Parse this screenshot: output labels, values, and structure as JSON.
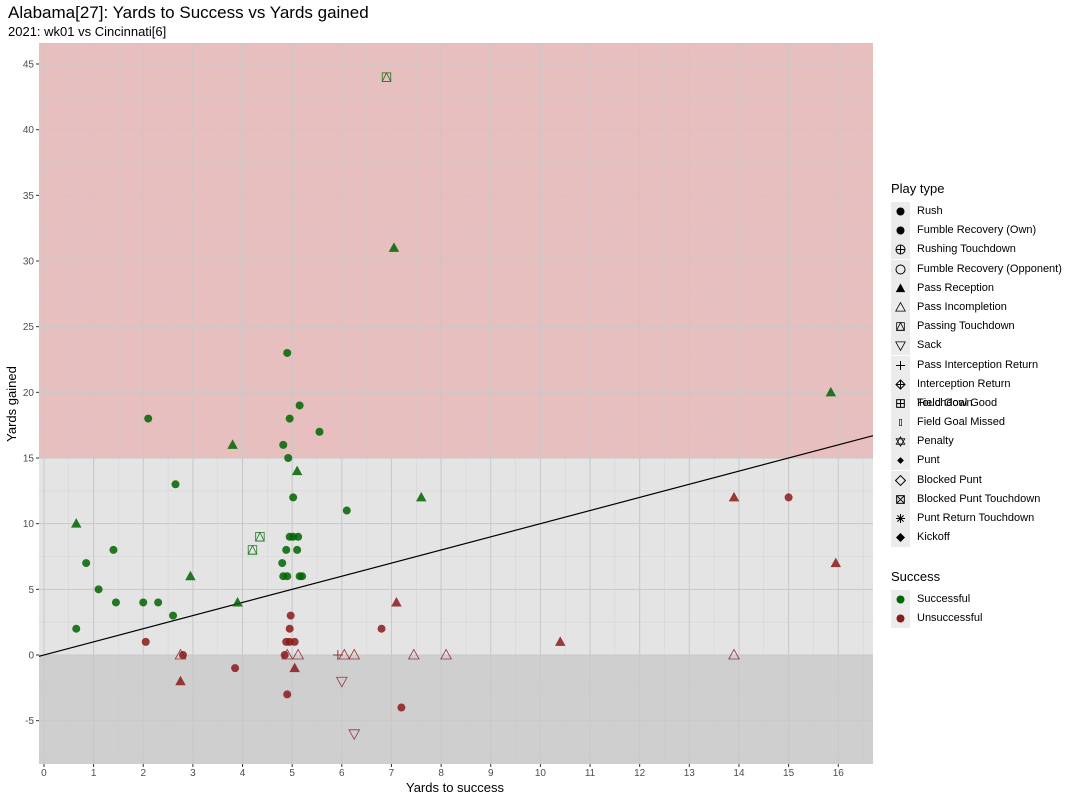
{
  "title": "Alabama[27]: Yards to Success vs Yards gained",
  "subtitle": "2021: wk01 vs Cincinnati[6]",
  "colors": {
    "successful": "#006400",
    "unsuccessful": "#8b1a1a",
    "band_top": "#e8bfbf",
    "band_mid": "#e4e4e4",
    "band_bottom": "#cfcfcf",
    "grid": "#c8c8c8"
  },
  "legend_play_type": {
    "title": "Play type",
    "items": [
      {
        "label": "Rush",
        "shape": "circle-filled"
      },
      {
        "label": "Fumble Recovery (Own)",
        "shape": "circle-filled"
      },
      {
        "label": "Rushing Touchdown",
        "shape": "circle-plus"
      },
      {
        "label": "Fumble Recovery (Opponent)",
        "shape": "circle-open"
      },
      {
        "label": "Pass Reception",
        "shape": "triangle-filled"
      },
      {
        "label": "Pass Incompletion",
        "shape": "triangle-open"
      },
      {
        "label": "Passing Touchdown",
        "shape": "square-triangle"
      },
      {
        "label": "Sack",
        "shape": "triangle-down-open"
      },
      {
        "label": "Pass Interception Return",
        "shape": "plus"
      },
      {
        "label": "Interception Return Touchdown",
        "shape": "diamond-plus"
      },
      {
        "label": "Field Goal Good",
        "shape": "square-plus"
      },
      {
        "label": "Field Goal Missed",
        "shape": "small-rect"
      },
      {
        "label": "Penalty",
        "shape": "star-of-david"
      },
      {
        "label": "Punt",
        "shape": "diamond-small-filled"
      },
      {
        "label": "Blocked Punt",
        "shape": "diamond-open"
      },
      {
        "label": "Blocked Punt Touchdown",
        "shape": "square-x"
      },
      {
        "label": "Punt Return Touchdown",
        "shape": "asterisk"
      },
      {
        "label": "Kickoff",
        "shape": "diamond-filled"
      }
    ]
  },
  "legend_success": {
    "title": "Success",
    "items": [
      {
        "label": "Successful",
        "color": "#006400"
      },
      {
        "label": "Unsuccessful",
        "color": "#8b1a1a"
      }
    ]
  },
  "chart_data": {
    "type": "scatter",
    "title": "Alabama[27]: Yards to Success vs Yards gained",
    "subtitle": "2021: wk01 vs Cincinnati[6]",
    "xlabel": "Yards to success",
    "ylabel": "Yards gained",
    "xlim": [
      -0.1,
      16.7
    ],
    "ylim": [
      -8.3,
      46.6
    ],
    "x_ticks": [
      0,
      1,
      2,
      3,
      4,
      5,
      6,
      7,
      8,
      9,
      10,
      11,
      12,
      13,
      14,
      15,
      16
    ],
    "y_ticks": [
      -5,
      0,
      5,
      10,
      15,
      20,
      25,
      30,
      35,
      40,
      45
    ],
    "bands": [
      {
        "from": 15,
        "to": 46.6,
        "color": "#e8bfbf"
      },
      {
        "from": 0,
        "to": 15,
        "color": "#e4e4e4"
      },
      {
        "from": -8.3,
        "to": 0,
        "color": "#cfcfcf"
      }
    ],
    "reference_line": {
      "slope": 1,
      "intercept": 0
    },
    "grid": true,
    "legend_position": "right",
    "points": [
      {
        "x": 0.65,
        "y": 2,
        "type": "Rush",
        "success": "Successful"
      },
      {
        "x": 0.85,
        "y": 7,
        "type": "Rush",
        "success": "Successful"
      },
      {
        "x": 1.1,
        "y": 5,
        "type": "Rush",
        "success": "Successful"
      },
      {
        "x": 1.4,
        "y": 8,
        "type": "Rush",
        "success": "Successful"
      },
      {
        "x": 1.45,
        "y": 4,
        "type": "Rush",
        "success": "Successful"
      },
      {
        "x": 2.0,
        "y": 4,
        "type": "Rush",
        "success": "Successful"
      },
      {
        "x": 2.3,
        "y": 4,
        "type": "Rush",
        "success": "Successful"
      },
      {
        "x": 2.6,
        "y": 3,
        "type": "Rush",
        "success": "Successful"
      },
      {
        "x": 2.65,
        "y": 13,
        "type": "Rush",
        "success": "Successful"
      },
      {
        "x": 2.1,
        "y": 18,
        "type": "Rush",
        "success": "Successful"
      },
      {
        "x": 4.8,
        "y": 7,
        "type": "Rush",
        "success": "Successful"
      },
      {
        "x": 4.82,
        "y": 6,
        "type": "Rush",
        "success": "Successful"
      },
      {
        "x": 4.9,
        "y": 6,
        "type": "Rush",
        "success": "Successful"
      },
      {
        "x": 4.88,
        "y": 8,
        "type": "Rush",
        "success": "Successful"
      },
      {
        "x": 4.95,
        "y": 9,
        "type": "Rush",
        "success": "Successful"
      },
      {
        "x": 5.02,
        "y": 9,
        "type": "Rush",
        "success": "Successful"
      },
      {
        "x": 5.12,
        "y": 9,
        "type": "Rush",
        "success": "Successful"
      },
      {
        "x": 5.1,
        "y": 8,
        "type": "Rush",
        "success": "Successful"
      },
      {
        "x": 5.15,
        "y": 6,
        "type": "Rush",
        "success": "Successful"
      },
      {
        "x": 5.2,
        "y": 6,
        "type": "Rush",
        "success": "Successful"
      },
      {
        "x": 5.02,
        "y": 12,
        "type": "Rush",
        "success": "Successful"
      },
      {
        "x": 4.92,
        "y": 15,
        "type": "Rush",
        "success": "Successful"
      },
      {
        "x": 4.82,
        "y": 16,
        "type": "Rush",
        "success": "Successful"
      },
      {
        "x": 4.95,
        "y": 18,
        "type": "Rush",
        "success": "Successful"
      },
      {
        "x": 5.15,
        "y": 19,
        "type": "Rush",
        "success": "Successful"
      },
      {
        "x": 4.9,
        "y": 23,
        "type": "Rush",
        "success": "Successful"
      },
      {
        "x": 5.55,
        "y": 17,
        "type": "Rush",
        "success": "Successful"
      },
      {
        "x": 6.1,
        "y": 11,
        "type": "Rush",
        "success": "Successful"
      },
      {
        "x": 0.65,
        "y": 10,
        "type": "Pass Reception",
        "success": "Successful"
      },
      {
        "x": 2.95,
        "y": 6,
        "type": "Pass Reception",
        "success": "Successful"
      },
      {
        "x": 3.9,
        "y": 4,
        "type": "Pass Reception",
        "success": "Successful"
      },
      {
        "x": 3.8,
        "y": 16,
        "type": "Pass Reception",
        "success": "Successful"
      },
      {
        "x": 5.1,
        "y": 14,
        "type": "Pass Reception",
        "success": "Successful"
      },
      {
        "x": 7.05,
        "y": 31,
        "type": "Pass Reception",
        "success": "Successful"
      },
      {
        "x": 7.6,
        "y": 12,
        "type": "Pass Reception",
        "success": "Successful"
      },
      {
        "x": 15.85,
        "y": 20,
        "type": "Pass Reception",
        "success": "Successful"
      },
      {
        "x": 4.2,
        "y": 8,
        "type": "Passing Touchdown",
        "success": "Successful"
      },
      {
        "x": 4.35,
        "y": 9,
        "type": "Passing Touchdown",
        "success": "Successful"
      },
      {
        "x": 6.9,
        "y": 44,
        "type": "Passing Touchdown",
        "success": "Successful"
      },
      {
        "x": 2.05,
        "y": 1,
        "type": "Rush",
        "success": "Unsuccessful"
      },
      {
        "x": 2.8,
        "y": 0,
        "type": "Rush",
        "success": "Unsuccessful"
      },
      {
        "x": 3.85,
        "y": -1,
        "type": "Rush",
        "success": "Unsuccessful"
      },
      {
        "x": 4.85,
        "y": 0,
        "type": "Rush",
        "success": "Unsuccessful"
      },
      {
        "x": 4.88,
        "y": 1,
        "type": "Rush",
        "success": "Unsuccessful"
      },
      {
        "x": 4.95,
        "y": 1,
        "type": "Rush",
        "success": "Unsuccessful"
      },
      {
        "x": 4.95,
        "y": 2,
        "type": "Rush",
        "success": "Unsuccessful"
      },
      {
        "x": 4.97,
        "y": 3,
        "type": "Rush",
        "success": "Unsuccessful"
      },
      {
        "x": 5.05,
        "y": 1,
        "type": "Rush",
        "success": "Unsuccessful"
      },
      {
        "x": 4.9,
        "y": -3,
        "type": "Rush",
        "success": "Unsuccessful"
      },
      {
        "x": 6.8,
        "y": 2,
        "type": "Rush",
        "success": "Unsuccessful"
      },
      {
        "x": 7.2,
        "y": -4,
        "type": "Rush",
        "success": "Unsuccessful"
      },
      {
        "x": 15.0,
        "y": 12,
        "type": "Rush",
        "success": "Unsuccessful"
      },
      {
        "x": 2.75,
        "y": -2,
        "type": "Pass Reception",
        "success": "Unsuccessful"
      },
      {
        "x": 5.05,
        "y": -1,
        "type": "Pass Reception",
        "success": "Unsuccessful"
      },
      {
        "x": 7.1,
        "y": 4,
        "type": "Pass Reception",
        "success": "Unsuccessful"
      },
      {
        "x": 10.4,
        "y": 1,
        "type": "Pass Reception",
        "success": "Unsuccessful"
      },
      {
        "x": 13.9,
        "y": 12,
        "type": "Pass Reception",
        "success": "Unsuccessful"
      },
      {
        "x": 15.95,
        "y": 7,
        "type": "Pass Reception",
        "success": "Unsuccessful"
      },
      {
        "x": 2.75,
        "y": 0,
        "type": "Pass Incompletion",
        "success": "Unsuccessful"
      },
      {
        "x": 4.9,
        "y": 0,
        "type": "Pass Incompletion",
        "success": "Unsuccessful"
      },
      {
        "x": 5.12,
        "y": 0,
        "type": "Pass Incompletion",
        "success": "Unsuccessful"
      },
      {
        "x": 6.05,
        "y": 0,
        "type": "Pass Incompletion",
        "success": "Unsuccessful"
      },
      {
        "x": 6.25,
        "y": 0,
        "type": "Pass Incompletion",
        "success": "Unsuccessful"
      },
      {
        "x": 7.45,
        "y": 0,
        "type": "Pass Incompletion",
        "success": "Unsuccessful"
      },
      {
        "x": 8.1,
        "y": 0,
        "type": "Pass Incompletion",
        "success": "Unsuccessful"
      },
      {
        "x": 13.9,
        "y": 0,
        "type": "Pass Incompletion",
        "success": "Unsuccessful"
      },
      {
        "x": 5.92,
        "y": 0,
        "type": "Pass Interception Return",
        "success": "Unsuccessful"
      },
      {
        "x": 6.0,
        "y": -2,
        "type": "Sack",
        "success": "Unsuccessful"
      },
      {
        "x": 6.25,
        "y": -6,
        "type": "Sack",
        "success": "Unsuccessful"
      }
    ]
  }
}
